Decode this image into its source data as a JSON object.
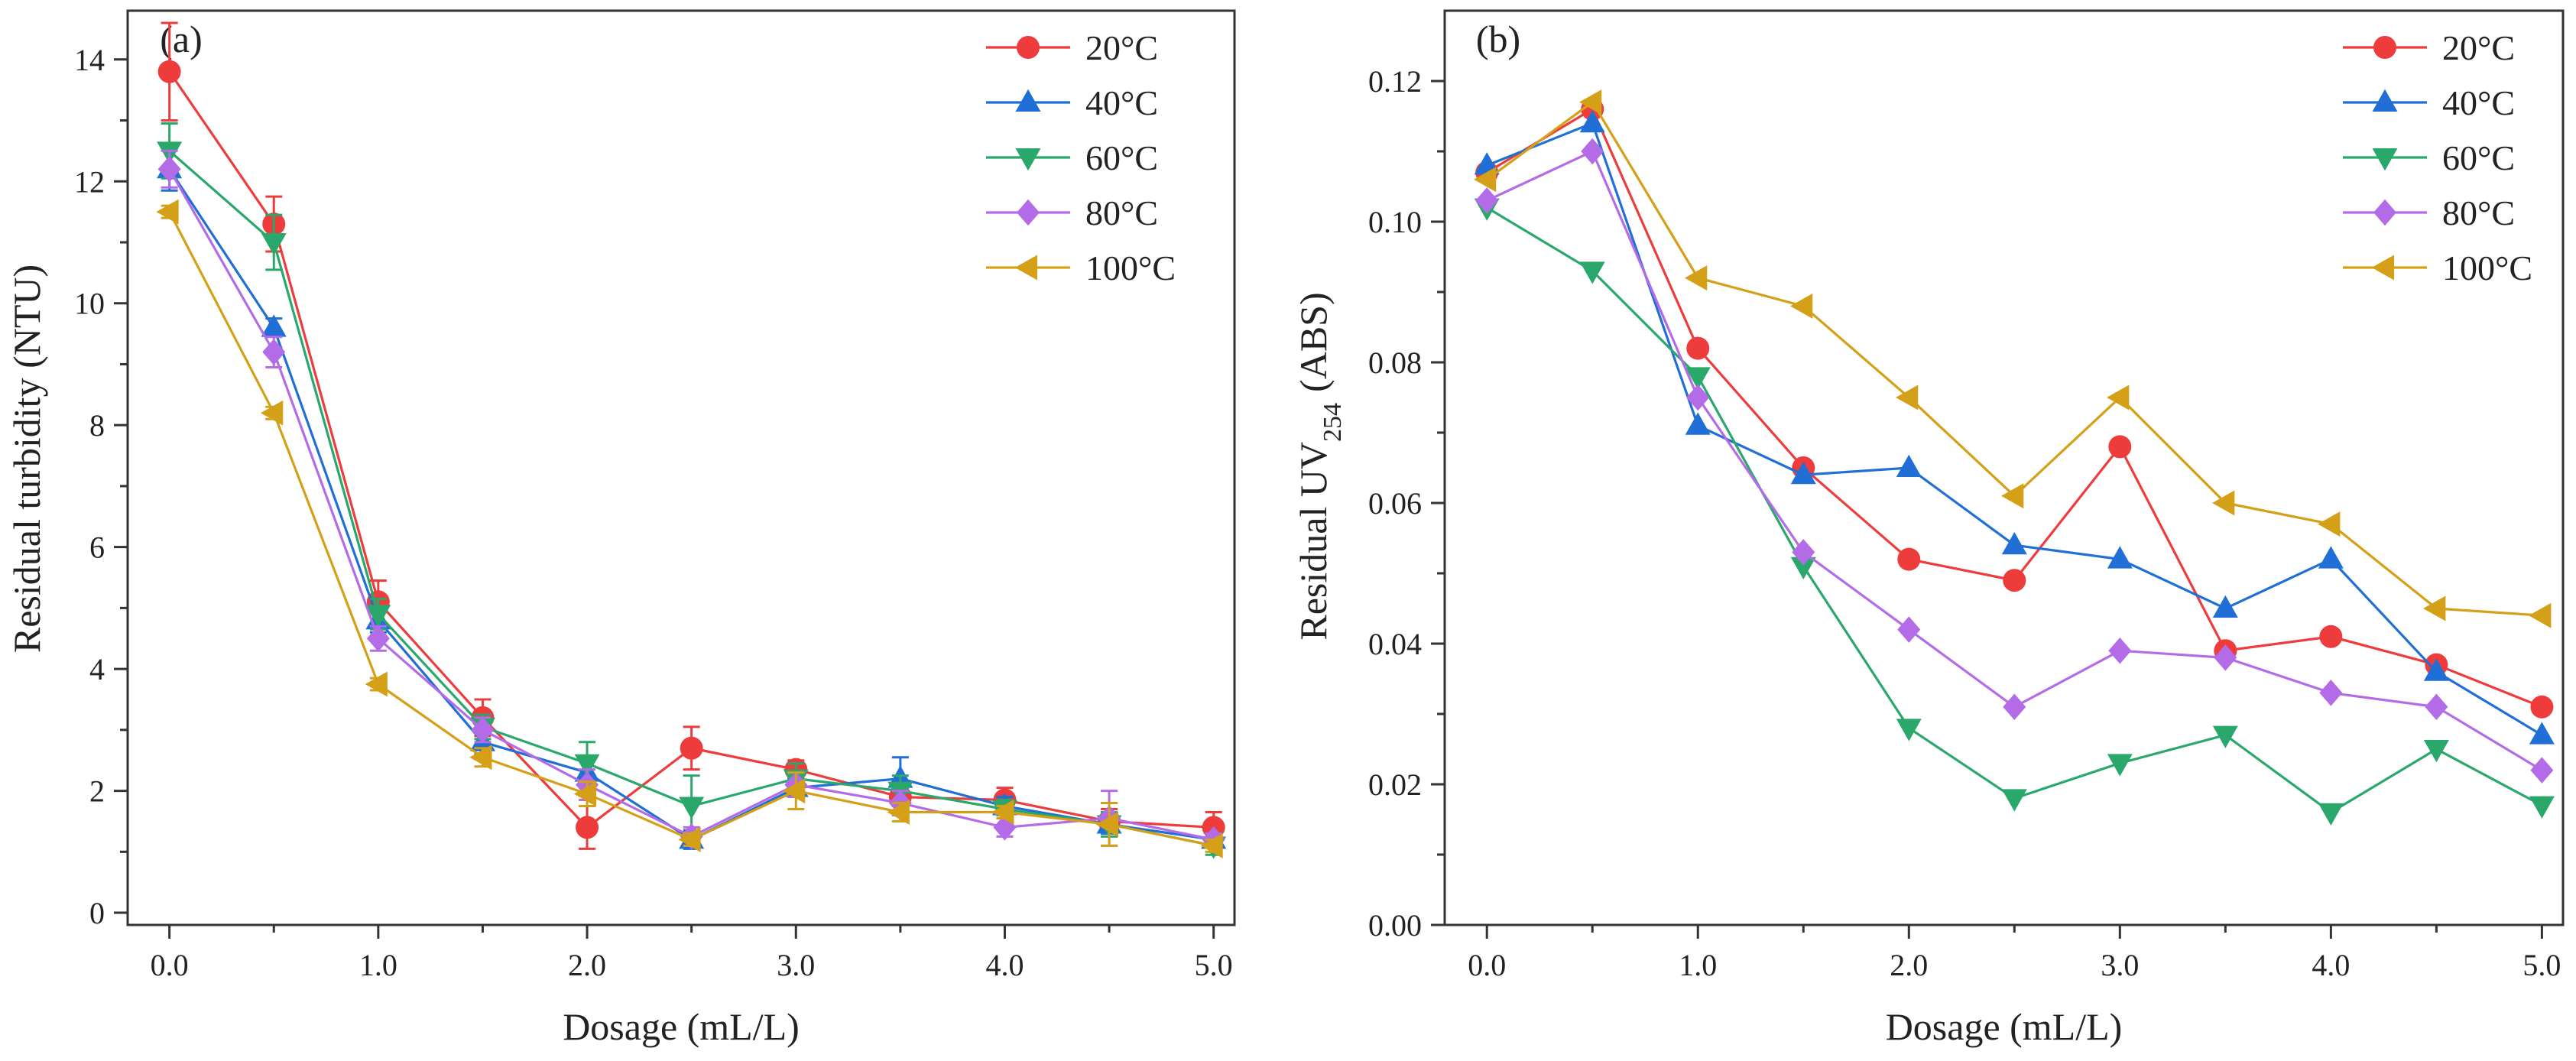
{
  "chart_data": [
    {
      "type": "line",
      "panel_label": "(a)",
      "title": "",
      "xlabel": "Dosage (mL/L)",
      "ylabel": "Residual turbidity (NTU)",
      "xlim": [
        -0.2,
        5.1
      ],
      "ylim": [
        -0.2,
        14.8
      ],
      "xticks": [
        0,
        1,
        2,
        3,
        4,
        5
      ],
      "xtick_labels": [
        "0.0",
        "1.0",
        "2.0",
        "3.0",
        "4.0",
        "5.0"
      ],
      "yticks": [
        0,
        2,
        4,
        6,
        8,
        10,
        12,
        14
      ],
      "ytick_labels": [
        "0",
        "2",
        "4",
        "6",
        "8",
        "10",
        "12",
        "14"
      ],
      "grid": false,
      "legend_position": "top-right",
      "x": [
        0,
        0.5,
        1.0,
        1.5,
        2.0,
        2.5,
        3.0,
        3.5,
        4.0,
        4.5,
        5.0
      ],
      "series": [
        {
          "name": "20°C",
          "color": "#ee3b3b",
          "marker": "circle",
          "values": [
            13.8,
            11.3,
            5.1,
            3.2,
            1.4,
            2.7,
            2.35,
            1.9,
            1.85,
            1.5,
            1.4
          ],
          "errors": [
            0.8,
            0.45,
            0.35,
            0.3,
            0.35,
            0.35,
            0.15,
            0.15,
            0.2,
            0.2,
            0.25
          ]
        },
        {
          "name": "40°C",
          "color": "#1f6fd6",
          "marker": "triangle-up",
          "values": [
            12.2,
            9.6,
            4.8,
            2.8,
            2.3,
            1.2,
            2.05,
            2.2,
            1.75,
            1.45,
            1.2
          ],
          "errors": [
            0.35,
            0.15,
            0.2,
            0.2,
            0.2,
            0.15,
            0.15,
            0.35,
            0.15,
            0.15,
            0.1
          ]
        },
        {
          "name": "60°C",
          "color": "#2aa86b",
          "marker": "triangle-down",
          "values": [
            12.5,
            11.0,
            4.9,
            3.05,
            2.45,
            1.75,
            2.2,
            2.0,
            1.7,
            1.45,
            1.1
          ],
          "errors": [
            0.45,
            0.45,
            0.25,
            0.2,
            0.35,
            0.5,
            0.25,
            0.25,
            0.15,
            0.2,
            0.15
          ]
        },
        {
          "name": "80°C",
          "color": "#b46be8",
          "marker": "diamond",
          "values": [
            12.2,
            9.2,
            4.5,
            3.0,
            2.1,
            1.25,
            2.1,
            1.8,
            1.4,
            1.55,
            1.2
          ],
          "errors": [
            0.3,
            0.25,
            0.2,
            0.2,
            0.25,
            0.15,
            0.2,
            0.2,
            0.15,
            0.45,
            0.1
          ]
        },
        {
          "name": "100°C",
          "color": "#d4a017",
          "marker": "triangle-left",
          "values": [
            11.5,
            8.2,
            3.75,
            2.55,
            1.95,
            1.2,
            2.0,
            1.65,
            1.65,
            1.45,
            1.1
          ],
          "errors": [
            0.1,
            0.1,
            0.1,
            0.15,
            0.2,
            0.1,
            0.3,
            0.15,
            0.1,
            0.35,
            0.1
          ]
        }
      ]
    },
    {
      "type": "line",
      "panel_label": "(b)",
      "title": "",
      "xlabel": "Dosage (mL/L)",
      "ylabel": "Residual UV",
      "ylabel_subscript": "254",
      "ylabel_suffix": "(ABS)",
      "xlim": [
        -0.2,
        5.1
      ],
      "ylim": [
        0,
        0.13
      ],
      "xticks": [
        0,
        1,
        2,
        3,
        4,
        5
      ],
      "xtick_labels": [
        "0.0",
        "1.0",
        "2.0",
        "3.0",
        "4.0",
        "5.0"
      ],
      "yticks": [
        0,
        0.02,
        0.04,
        0.06,
        0.08,
        0.1,
        0.12
      ],
      "ytick_labels": [
        "0.00",
        "0.02",
        "0.04",
        "0.06",
        "0.08",
        "0.10",
        "0.12"
      ],
      "grid": false,
      "legend_position": "top-right",
      "x": [
        0,
        0.5,
        1.0,
        1.5,
        2.0,
        2.5,
        3.0,
        3.5,
        4.0,
        4.5,
        5.0
      ],
      "series": [
        {
          "name": "20°C",
          "color": "#ee3b3b",
          "marker": "circle",
          "values": [
            0.107,
            0.116,
            0.082,
            0.065,
            0.052,
            0.049,
            0.068,
            0.039,
            0.041,
            0.037,
            0.031
          ]
        },
        {
          "name": "40°C",
          "color": "#1f6fd6",
          "marker": "triangle-up",
          "values": [
            0.108,
            0.114,
            0.071,
            0.064,
            0.065,
            0.054,
            0.052,
            0.045,
            0.052,
            0.036,
            0.027
          ]
        },
        {
          "name": "60°C",
          "color": "#2aa86b",
          "marker": "triangle-down",
          "values": [
            0.102,
            0.093,
            0.078,
            0.051,
            0.028,
            0.018,
            0.023,
            0.027,
            0.016,
            0.025,
            0.017
          ]
        },
        {
          "name": "80°C",
          "color": "#b46be8",
          "marker": "diamond",
          "values": [
            0.103,
            0.11,
            0.075,
            0.053,
            0.042,
            0.031,
            0.039,
            0.038,
            0.033,
            0.031,
            0.022
          ]
        },
        {
          "name": "100°C",
          "color": "#d4a017",
          "marker": "triangle-left",
          "values": [
            0.106,
            0.117,
            0.092,
            0.088,
            0.075,
            0.061,
            0.075,
            0.06,
            0.057,
            0.045,
            0.044
          ]
        }
      ]
    }
  ]
}
